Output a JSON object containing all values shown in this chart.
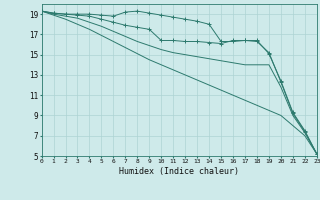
{
  "xlabel": "Humidex (Indice chaleur)",
  "ylabel": "",
  "bg_color": "#ceeaea",
  "line_color": "#2d7a6e",
  "grid_color": "#aed4d4",
  "xlim": [
    0,
    23
  ],
  "ylim": [
    5,
    20
  ],
  "xticks": [
    0,
    1,
    2,
    3,
    4,
    5,
    6,
    7,
    8,
    9,
    10,
    11,
    12,
    13,
    14,
    15,
    16,
    17,
    18,
    19,
    20,
    21,
    22,
    23
  ],
  "yticks": [
    5,
    7,
    9,
    11,
    13,
    15,
    17,
    19
  ],
  "lines": [
    {
      "x": [
        0,
        1,
        2,
        3,
        4,
        5,
        6,
        7,
        8,
        9,
        10,
        11,
        12,
        13,
        14,
        15,
        16,
        17,
        18,
        19,
        20,
        21,
        22,
        23
      ],
      "y": [
        19.3,
        19.1,
        19.0,
        19.0,
        19.0,
        18.9,
        18.8,
        19.2,
        19.3,
        19.1,
        18.9,
        18.7,
        18.5,
        18.3,
        18.0,
        16.3,
        16.3,
        16.4,
        16.4,
        15.1,
        12.4,
        9.3,
        7.5,
        5.2
      ],
      "marker": true
    },
    {
      "x": [
        0,
        1,
        2,
        3,
        4,
        5,
        6,
        7,
        8,
        9,
        10,
        11,
        12,
        13,
        14,
        15,
        16,
        17,
        18,
        19,
        20,
        21,
        22,
        23
      ],
      "y": [
        19.3,
        19.1,
        19.0,
        18.9,
        18.8,
        18.5,
        18.2,
        17.9,
        17.7,
        17.5,
        16.4,
        16.4,
        16.3,
        16.3,
        16.2,
        16.1,
        16.4,
        16.4,
        16.3,
        15.2,
        12.3,
        9.2,
        7.4,
        5.2
      ],
      "marker": true
    },
    {
      "x": [
        0,
        1,
        2,
        3,
        4,
        5,
        6,
        7,
        8,
        9,
        10,
        11,
        12,
        13,
        14,
        15,
        16,
        17,
        18,
        19,
        20,
        21,
        22,
        23
      ],
      "y": [
        19.3,
        19.0,
        18.8,
        18.6,
        18.2,
        17.8,
        17.3,
        16.8,
        16.3,
        15.9,
        15.5,
        15.2,
        15.0,
        14.8,
        14.6,
        14.4,
        14.2,
        14.0,
        14.0,
        14.0,
        11.8,
        9.0,
        7.3,
        5.2
      ],
      "marker": false
    },
    {
      "x": [
        0,
        1,
        2,
        3,
        4,
        5,
        6,
        7,
        8,
        9,
        10,
        11,
        12,
        13,
        14,
        15,
        16,
        17,
        18,
        19,
        20,
        21,
        22,
        23
      ],
      "y": [
        19.3,
        18.9,
        18.5,
        18.0,
        17.5,
        16.9,
        16.3,
        15.7,
        15.1,
        14.5,
        14.0,
        13.5,
        13.0,
        12.5,
        12.0,
        11.5,
        11.0,
        10.5,
        10.0,
        9.5,
        9.0,
        8.0,
        7.0,
        5.2
      ],
      "marker": false
    }
  ]
}
